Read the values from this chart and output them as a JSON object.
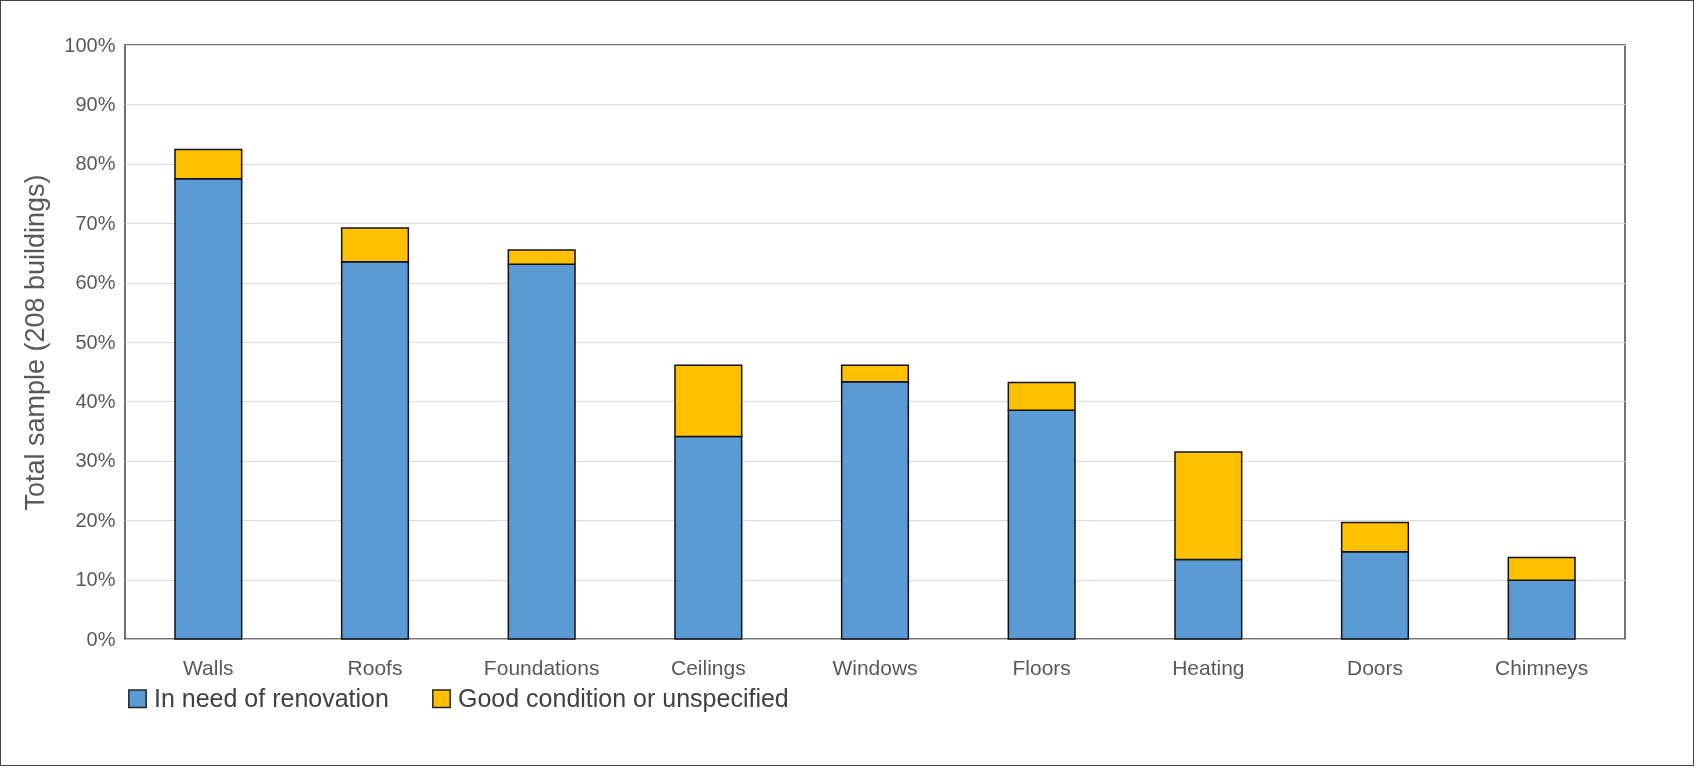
{
  "chart_data": {
    "type": "bar",
    "ylabel": "Total sample (208 buildings)",
    "stacked": true,
    "categories": [
      "Walls",
      "Roofs",
      "Foundations",
      "Ceilings",
      "Windows",
      "Floors",
      "Heating",
      "Doors",
      "Chimneys"
    ],
    "series": [
      {
        "name": "In need of renovation",
        "color": "#5b9bd5",
        "values": [
          77.5,
          63.5,
          63.1,
          34.1,
          43.3,
          38.5,
          13.4,
          14.7,
          9.9
        ]
      },
      {
        "name": "Good condition or unspecified",
        "color": "#ffc000",
        "values": [
          4.9,
          5.7,
          2.4,
          12.0,
          2.8,
          4.7,
          18.1,
          4.9,
          3.8
        ]
      }
    ],
    "ylim": [
      0,
      100
    ],
    "yticks": [
      {
        "value": 0,
        "label": "0%"
      },
      {
        "value": 10,
        "label": "10%"
      },
      {
        "value": 20,
        "label": "20%"
      },
      {
        "value": 30,
        "label": "30%"
      },
      {
        "value": 40,
        "label": "40%"
      },
      {
        "value": 50,
        "label": "50%"
      },
      {
        "value": 60,
        "label": "60%"
      },
      {
        "value": 70,
        "label": "70%"
      },
      {
        "value": 80,
        "label": "80%"
      },
      {
        "value": 90,
        "label": "90%"
      },
      {
        "value": 100,
        "label": "100%"
      }
    ],
    "grid": "y",
    "legend": "bottom"
  }
}
